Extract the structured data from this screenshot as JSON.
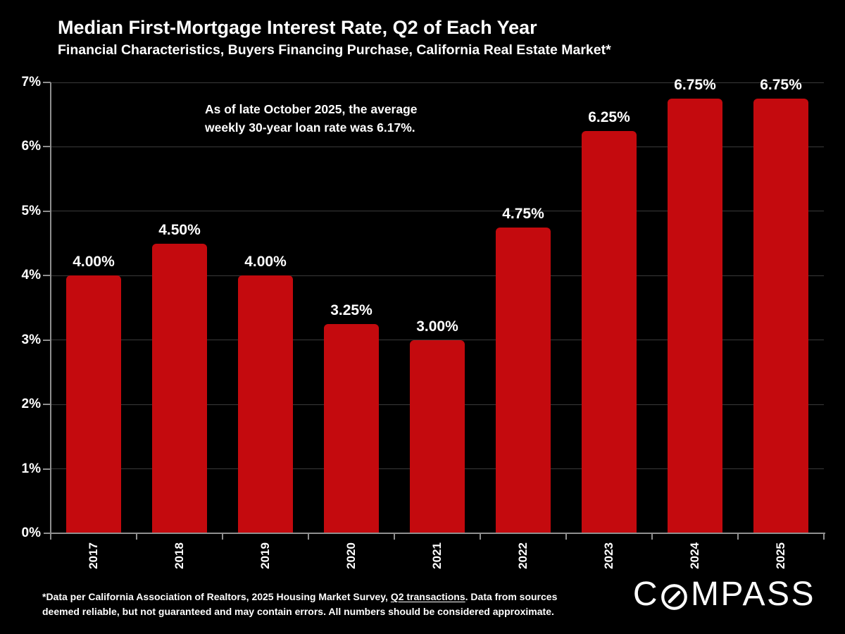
{
  "header": {
    "title": "Median First-Mortgage Interest Rate, Q2 of Each Year",
    "subtitle": "Financial Characteristics, Buyers Financing Purchase, California Real Estate Market*"
  },
  "annotation": {
    "line1": "As of late October 2025, the average",
    "line2": "weekly 30-year loan rate was 6.17%."
  },
  "chart_data": {
    "type": "bar",
    "title": "Median First-Mortgage Interest Rate, Q2 of Each Year",
    "subtitle": "Financial Characteristics, Buyers Financing Purchase, California Real Estate Market*",
    "categories": [
      "2017",
      "2018",
      "2019",
      "2020",
      "2021",
      "2022",
      "2023",
      "2024",
      "2025"
    ],
    "values": [
      4.0,
      4.5,
      4.0,
      3.25,
      3.0,
      4.75,
      6.25,
      6.75,
      6.75
    ],
    "value_labels": [
      "4.00%",
      "4.50%",
      "4.00%",
      "3.25%",
      "3.00%",
      "4.75%",
      "6.25%",
      "6.75%",
      "6.75%"
    ],
    "xlabel": "",
    "ylabel": "",
    "ylim": [
      0,
      7
    ],
    "yticks": [
      "0%",
      "1%",
      "2%",
      "3%",
      "4%",
      "5%",
      "6%",
      "7%"
    ],
    "grid": "horizontal",
    "legend": "none",
    "annotation": "As of late October 2025, the average weekly 30-year loan rate was 6.17%.",
    "colors": {
      "bar": "#c40a0e",
      "background": "#000000",
      "text": "#ffffff",
      "gridline": "#3a3a3a",
      "axis": "#8f8f8f"
    }
  },
  "footnote": {
    "line1_part1": "*Data per California Association of Realtors, 2025 Housing Market Survey, ",
    "line1_underlined": "Q2 transactions",
    "line1_part2": ". Data from sources",
    "line2": "deemed reliable, but not guaranteed and may contain errors. All numbers should be considered approximate."
  },
  "logo": {
    "part1": "C",
    "part2": "MPASS",
    "name": "COMPASS"
  }
}
